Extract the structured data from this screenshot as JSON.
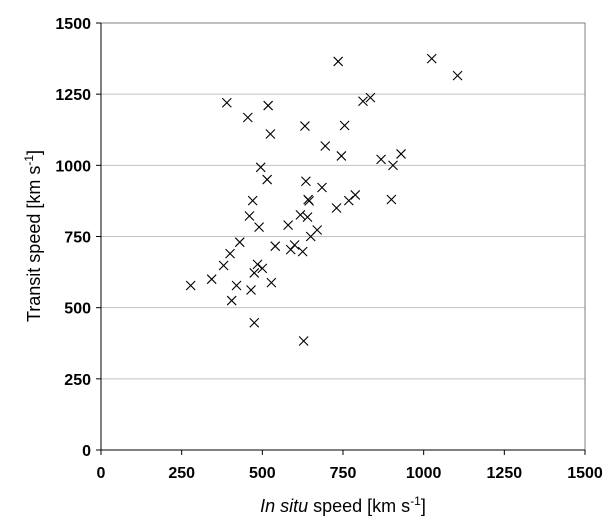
{
  "chart_data": {
    "type": "scatter",
    "title": "",
    "xlabel_italic": "In situ",
    "xlabel_rest": " speed [km s",
    "xlabel_sup": "-1",
    "xlabel_close": "]",
    "ylabel_main": "Transit speed [km s",
    "ylabel_sup": "-1",
    "ylabel_close": "]",
    "xlim": [
      0,
      1500
    ],
    "ylim": [
      0,
      1500
    ],
    "xticks": [
      0,
      250,
      500,
      750,
      1000,
      1250,
      1500
    ],
    "yticks": [
      0,
      250,
      500,
      750,
      1000,
      1250,
      1500
    ],
    "grid": "horizontal",
    "marker": "x",
    "marker_color": "#000000",
    "points": [
      [
        278,
        578
      ],
      [
        343,
        600
      ],
      [
        380,
        648
      ],
      [
        390,
        1220
      ],
      [
        400,
        690
      ],
      [
        405,
        525
      ],
      [
        420,
        578
      ],
      [
        430,
        730
      ],
      [
        455,
        1168
      ],
      [
        460,
        822
      ],
      [
        465,
        562
      ],
      [
        470,
        876
      ],
      [
        475,
        622
      ],
      [
        475,
        447
      ],
      [
        485,
        652
      ],
      [
        490,
        783
      ],
      [
        495,
        993
      ],
      [
        500,
        638
      ],
      [
        515,
        950
      ],
      [
        518,
        1210
      ],
      [
        525,
        1110
      ],
      [
        528,
        588
      ],
      [
        540,
        716
      ],
      [
        580,
        790
      ],
      [
        588,
        704
      ],
      [
        600,
        720
      ],
      [
        618,
        826
      ],
      [
        625,
        697
      ],
      [
        628,
        383
      ],
      [
        632,
        1138
      ],
      [
        635,
        944
      ],
      [
        640,
        818
      ],
      [
        642,
        880
      ],
      [
        645,
        875
      ],
      [
        650,
        750
      ],
      [
        670,
        773
      ],
      [
        685,
        922
      ],
      [
        695,
        1068
      ],
      [
        730,
        850
      ],
      [
        735,
        1365
      ],
      [
        745,
        1033
      ],
      [
        755,
        1140
      ],
      [
        768,
        876
      ],
      [
        788,
        896
      ],
      [
        812,
        1225
      ],
      [
        835,
        1238
      ],
      [
        868,
        1021
      ],
      [
        900,
        880
      ],
      [
        905,
        1000
      ],
      [
        930,
        1040
      ],
      [
        1025,
        1375
      ],
      [
        1105,
        1315
      ]
    ]
  }
}
